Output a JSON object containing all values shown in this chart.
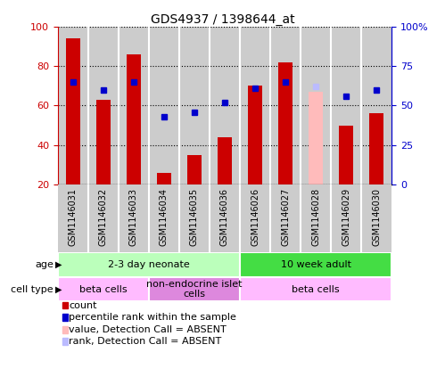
{
  "title": "GDS4937 / 1398644_at",
  "samples": [
    "GSM1146031",
    "GSM1146032",
    "GSM1146033",
    "GSM1146034",
    "GSM1146035",
    "GSM1146036",
    "GSM1146026",
    "GSM1146027",
    "GSM1146028",
    "GSM1146029",
    "GSM1146030"
  ],
  "count_values": [
    94,
    63,
    86,
    26,
    35,
    44,
    70,
    82,
    null,
    50,
    56
  ],
  "rank_values": [
    65,
    60,
    65,
    43,
    46,
    52,
    61,
    65,
    null,
    56,
    60
  ],
  "absent_value_bar": [
    null,
    null,
    null,
    null,
    null,
    null,
    null,
    null,
    67,
    null,
    null
  ],
  "absent_rank_bar": [
    null,
    null,
    null,
    null,
    null,
    null,
    null,
    null,
    62,
    null,
    null
  ],
  "ylim_left": [
    20,
    100
  ],
  "ylim_right": [
    0,
    100
  ],
  "yticks_left": [
    20,
    40,
    60,
    80,
    100
  ],
  "yticks_right": [
    0,
    25,
    50,
    75,
    100
  ],
  "ytick_labels_right": [
    "0",
    "25",
    "50",
    "75",
    "100%"
  ],
  "bar_color": "#cc0000",
  "rank_color": "#0000cc",
  "absent_bar_color": "#ffbbbb",
  "absent_rank_color": "#bbbbff",
  "left_tick_color": "#cc0000",
  "right_tick_color": "#0000cc",
  "col_bg_color": "#cccccc",
  "plot_bg_color": "#ffffff",
  "age_groups": [
    {
      "label": "2-3 day neonate",
      "start": 0,
      "end": 6,
      "color": "#bbffbb"
    },
    {
      "label": "10 week adult",
      "start": 6,
      "end": 11,
      "color": "#44dd44"
    }
  ],
  "cell_type_groups": [
    {
      "label": "beta cells",
      "start": 0,
      "end": 3,
      "color": "#ffbbff"
    },
    {
      "label": "non-endocrine islet\ncells",
      "start": 3,
      "end": 6,
      "color": "#dd88dd"
    },
    {
      "label": "beta cells",
      "start": 6,
      "end": 11,
      "color": "#ffbbff"
    }
  ],
  "legend_items": [
    {
      "label": "count",
      "color": "#cc0000"
    },
    {
      "label": "percentile rank within the sample",
      "color": "#0000cc"
    },
    {
      "label": "value, Detection Call = ABSENT",
      "color": "#ffbbbb"
    },
    {
      "label": "rank, Detection Call = ABSENT",
      "color": "#bbbbff"
    }
  ]
}
